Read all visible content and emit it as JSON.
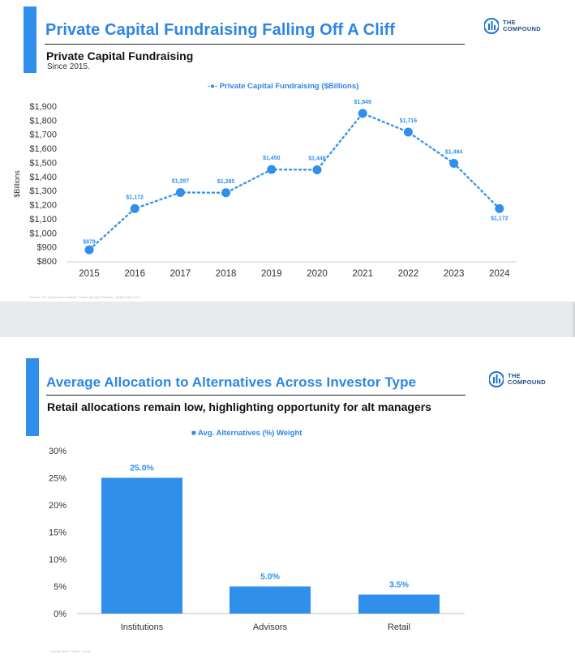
{
  "brand": {
    "logo_line1": "THE",
    "logo_line2": "COMPOUND",
    "accent_color": "#2f8fea",
    "title_color": "#2c86e3"
  },
  "slide1": {
    "title": "Private Capital Fundraising Falling Off A Cliff",
    "subtitle": "Private Capital Fundraising",
    "note": "Since 2015.",
    "legend": "-●- Private Capital Fundraising ($Billions)",
    "source": "Source: The Compound analysis, Preqin, Moody's Ratings, Global Data Tree"
  },
  "slide2": {
    "title": "Average Allocation to Alternatives Across Investor Type",
    "subtitle": "Retail allocations remain low, highlighting opportunity for alt managers",
    "legend": "■ Avg. Alternatives (%) Weight",
    "source": "Source: BNY, Tidelis, Cerulli"
  },
  "chart_data": [
    {
      "type": "line",
      "title": "Private Capital Fundraising",
      "ylabel": "$Billions",
      "xlabel": "",
      "x": [
        "2015",
        "2016",
        "2017",
        "2018",
        "2019",
        "2020",
        "2021",
        "2022",
        "2023",
        "2024"
      ],
      "series": [
        {
          "name": "Private Capital Fundraising ($Billions)",
          "values": [
            879,
            1172,
            1287,
            1285,
            1450,
            1448,
            1849,
            1716,
            1494,
            1172
          ],
          "labels": [
            "$879",
            "$1,172",
            "$1,287",
            "$1,285",
            "$1,450",
            "$1,448",
            "$1,849",
            "$1,716",
            "$1,494",
            "$1,172"
          ],
          "color": "#2f8fea",
          "style": "dashed with circle markers"
        }
      ],
      "ylim": [
        800,
        1900
      ],
      "yticks": [
        800,
        900,
        1000,
        1100,
        1200,
        1300,
        1400,
        1500,
        1600,
        1700,
        1800,
        1900
      ],
      "ytick_labels": [
        "$800",
        "$900",
        "$1,000",
        "$1,100",
        "$1,200",
        "$1,300",
        "$1,400",
        "$1,500",
        "$1,600",
        "$1,700",
        "$1,800",
        "$1,900"
      ],
      "grid": false,
      "legend_position": "top-center"
    },
    {
      "type": "bar",
      "title": "Average Allocation to Alternatives Across Investor Type",
      "categories": [
        "Institutions",
        "Advisors",
        "Retail"
      ],
      "series": [
        {
          "name": "Avg. Alternatives (%) Weight",
          "values": [
            25.0,
            5.0,
            3.5
          ],
          "labels": [
            "25.0%",
            "5.0%",
            "3.5%"
          ],
          "color": "#2f8fea"
        }
      ],
      "ylim": [
        0,
        30
      ],
      "yticks": [
        0,
        5,
        10,
        15,
        20,
        25,
        30
      ],
      "ytick_labels": [
        "0%",
        "5%",
        "10%",
        "15%",
        "20%",
        "25%",
        "30%"
      ],
      "grid": false,
      "legend_position": "top-center"
    }
  ]
}
